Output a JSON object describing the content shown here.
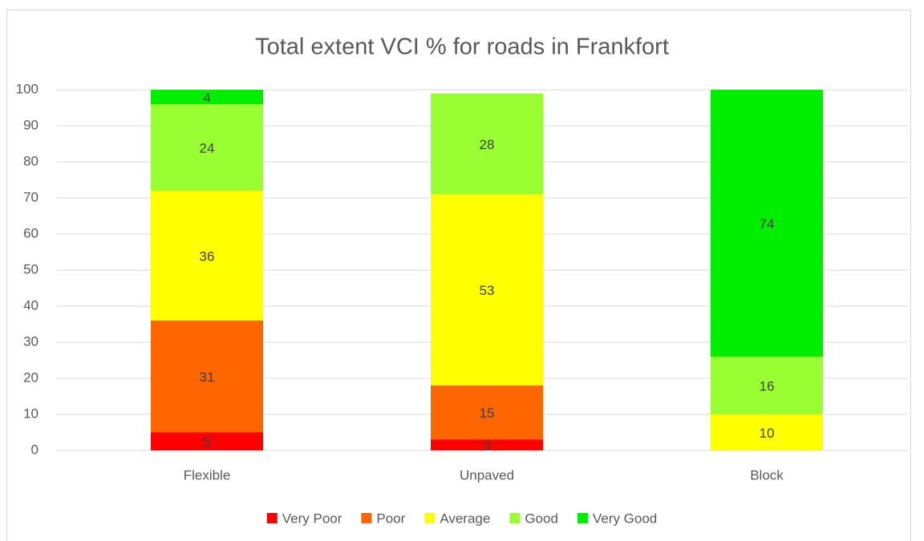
{
  "chart_data": {
    "type": "stacked_bar",
    "title": "Total extent VCI % for roads in Frankfort",
    "categories": [
      "Flexible",
      "Unpaved",
      "Block"
    ],
    "series": [
      {
        "name": "Very Poor",
        "color": "#ff0000",
        "values": [
          5,
          3,
          null
        ]
      },
      {
        "name": "Poor",
        "color": "#ff6600",
        "values": [
          31,
          15,
          null
        ]
      },
      {
        "name": "Average",
        "color": "#ffff00",
        "values": [
          36,
          53,
          10
        ]
      },
      {
        "name": "Good",
        "color": "#99ff33",
        "values": [
          24,
          28,
          16
        ]
      },
      {
        "name": "Very Good",
        "color": "#00ee00",
        "values": [
          4,
          null,
          74
        ]
      }
    ],
    "ylim": [
      0,
      100
    ],
    "yticks": [
      0,
      10,
      20,
      30,
      40,
      50,
      60,
      70,
      80,
      90,
      100
    ],
    "grid": true,
    "legend": "bottom"
  }
}
